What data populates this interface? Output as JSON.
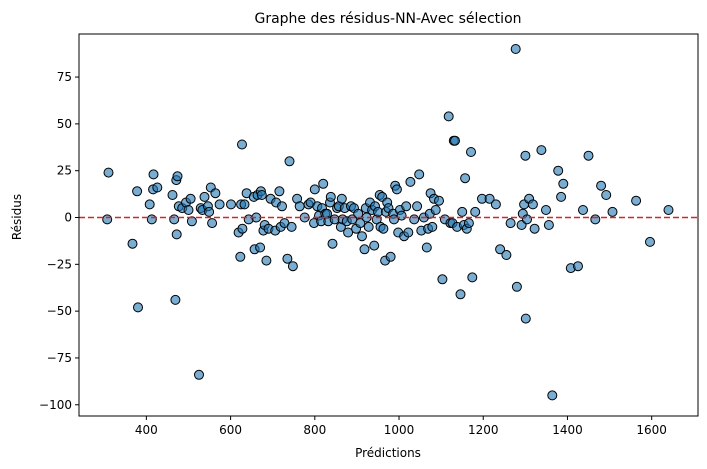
{
  "chart_data": {
    "type": "scatter",
    "title": "Graphe des résidus-NN-Avec sélection",
    "xlabel": "Prédictions",
    "ylabel": "Résidus",
    "xlim": [
      240,
      1710
    ],
    "ylim": [
      -106,
      98
    ],
    "xticks": [
      400,
      600,
      800,
      1000,
      1200,
      1400,
      1600
    ],
    "yticks": [
      -100,
      -75,
      -50,
      -25,
      0,
      25,
      50,
      75
    ],
    "grid": false,
    "point_color": "#1f77b4",
    "point_edge_color": "#000000",
    "point_opacity": 0.6,
    "reference_line": {
      "y": 0,
      "color": "#d62728",
      "style": "dashed"
    },
    "points": [
      [
        307,
        -1
      ],
      [
        310,
        24
      ],
      [
        367,
        -14
      ],
      [
        378,
        14
      ],
      [
        380,
        -48
      ],
      [
        408,
        7
      ],
      [
        413,
        -1
      ],
      [
        416,
        15
      ],
      [
        417,
        23
      ],
      [
        426,
        16
      ],
      [
        462,
        12
      ],
      [
        466,
        -1
      ],
      [
        469,
        -44
      ],
      [
        471,
        20
      ],
      [
        472,
        -9
      ],
      [
        474,
        22
      ],
      [
        477,
        6
      ],
      [
        485,
        5
      ],
      [
        494,
        8
      ],
      [
        500,
        4
      ],
      [
        505,
        10
      ],
      [
        508,
        -2
      ],
      [
        525,
        -84
      ],
      [
        529,
        5
      ],
      [
        533,
        4
      ],
      [
        538,
        11
      ],
      [
        546,
        6
      ],
      [
        549,
        3
      ],
      [
        553,
        16
      ],
      [
        556,
        -3
      ],
      [
        564,
        13
      ],
      [
        574,
        7
      ],
      [
        601,
        7
      ],
      [
        619,
        -8
      ],
      [
        623,
        -21
      ],
      [
        625,
        7
      ],
      [
        627,
        39
      ],
      [
        628,
        -6
      ],
      [
        633,
        7
      ],
      [
        638,
        13
      ],
      [
        643,
        -1
      ],
      [
        655,
        11
      ],
      [
        657,
        -17
      ],
      [
        661,
        0
      ],
      [
        664,
        12
      ],
      [
        670,
        -16
      ],
      [
        672,
        14
      ],
      [
        674,
        12
      ],
      [
        678,
        -7
      ],
      [
        681,
        -4
      ],
      [
        685,
        -23
      ],
      [
        690,
        -6
      ],
      [
        695,
        10
      ],
      [
        706,
        -7
      ],
      [
        708,
        8
      ],
      [
        716,
        14
      ],
      [
        719,
        -5
      ],
      [
        722,
        6
      ],
      [
        728,
        -3
      ],
      [
        735,
        -22
      ],
      [
        740,
        30
      ],
      [
        745,
        -5
      ],
      [
        748,
        -26
      ],
      [
        758,
        10
      ],
      [
        764,
        6
      ],
      [
        776,
        0
      ],
      [
        785,
        7
      ],
      [
        790,
        8
      ],
      [
        798,
        -3
      ],
      [
        800,
        15
      ],
      [
        806,
        6
      ],
      [
        810,
        1
      ],
      [
        815,
        -2
      ],
      [
        817,
        5
      ],
      [
        820,
        18
      ],
      [
        825,
        2
      ],
      [
        829,
        2
      ],
      [
        832,
        -2
      ],
      [
        836,
        8
      ],
      [
        838,
        11
      ],
      [
        842,
        -14
      ],
      [
        847,
        -1
      ],
      [
        853,
        5
      ],
      [
        857,
        6
      ],
      [
        862,
        -5
      ],
      [
        864,
        10
      ],
      [
        866,
        -1
      ],
      [
        871,
        5
      ],
      [
        876,
        -2
      ],
      [
        879,
        -8
      ],
      [
        886,
        6
      ],
      [
        889,
        -1
      ],
      [
        893,
        5
      ],
      [
        898,
        -6
      ],
      [
        903,
        2
      ],
      [
        908,
        -3
      ],
      [
        912,
        -10
      ],
      [
        918,
        -17
      ],
      [
        921,
        5
      ],
      [
        923,
        0
      ],
      [
        928,
        -5
      ],
      [
        931,
        8
      ],
      [
        936,
        4
      ],
      [
        941,
        -15
      ],
      [
        943,
        6
      ],
      [
        947,
        -1
      ],
      [
        950,
        3
      ],
      [
        954,
        12
      ],
      [
        956,
        -5
      ],
      [
        960,
        11
      ],
      [
        963,
        -6
      ],
      [
        967,
        -23
      ],
      [
        969,
        3
      ],
      [
        972,
        8
      ],
      [
        975,
        5
      ],
      [
        980,
        -21
      ],
      [
        986,
        2
      ],
      [
        988,
        -1
      ],
      [
        991,
        17
      ],
      [
        995,
        15
      ],
      [
        998,
        -8
      ],
      [
        1002,
        4
      ],
      [
        1006,
        1
      ],
      [
        1012,
        -10
      ],
      [
        1017,
        6
      ],
      [
        1022,
        -8
      ],
      [
        1027,
        19
      ],
      [
        1036,
        -1
      ],
      [
        1043,
        6
      ],
      [
        1048,
        23
      ],
      [
        1053,
        -7
      ],
      [
        1059,
        0
      ],
      [
        1066,
        -16
      ],
      [
        1069,
        -6
      ],
      [
        1073,
        2
      ],
      [
        1075,
        13
      ],
      [
        1079,
        -5
      ],
      [
        1083,
        10
      ],
      [
        1087,
        4
      ],
      [
        1095,
        9
      ],
      [
        1103,
        -33
      ],
      [
        1109,
        -1
      ],
      [
        1118,
        54
      ],
      [
        1122,
        -3
      ],
      [
        1127,
        -3
      ],
      [
        1130,
        41
      ],
      [
        1133,
        41
      ],
      [
        1138,
        -5
      ],
      [
        1146,
        -41
      ],
      [
        1150,
        3
      ],
      [
        1154,
        -4
      ],
      [
        1157,
        21
      ],
      [
        1161,
        -6
      ],
      [
        1166,
        -3
      ],
      [
        1171,
        35
      ],
      [
        1174,
        -32
      ],
      [
        1181,
        3
      ],
      [
        1197,
        10
      ],
      [
        1215,
        10
      ],
      [
        1230,
        7
      ],
      [
        1240,
        -17
      ],
      [
        1255,
        -20
      ],
      [
        1265,
        -3
      ],
      [
        1277,
        90
      ],
      [
        1280,
        -37
      ],
      [
        1291,
        -4
      ],
      [
        1294,
        2
      ],
      [
        1297,
        7
      ],
      [
        1300,
        33
      ],
      [
        1301,
        -54
      ],
      [
        1304,
        -1
      ],
      [
        1309,
        10
      ],
      [
        1318,
        7
      ],
      [
        1322,
        -6
      ],
      [
        1338,
        36
      ],
      [
        1349,
        4
      ],
      [
        1356,
        -4
      ],
      [
        1364,
        -95
      ],
      [
        1378,
        25
      ],
      [
        1385,
        11
      ],
      [
        1390,
        18
      ],
      [
        1408,
        -27
      ],
      [
        1425,
        -26
      ],
      [
        1437,
        4
      ],
      [
        1450,
        33
      ],
      [
        1466,
        -1
      ],
      [
        1480,
        17
      ],
      [
        1492,
        12
      ],
      [
        1507,
        3
      ],
      [
        1563,
        9
      ],
      [
        1596,
        -13
      ],
      [
        1640,
        4
      ]
    ]
  }
}
